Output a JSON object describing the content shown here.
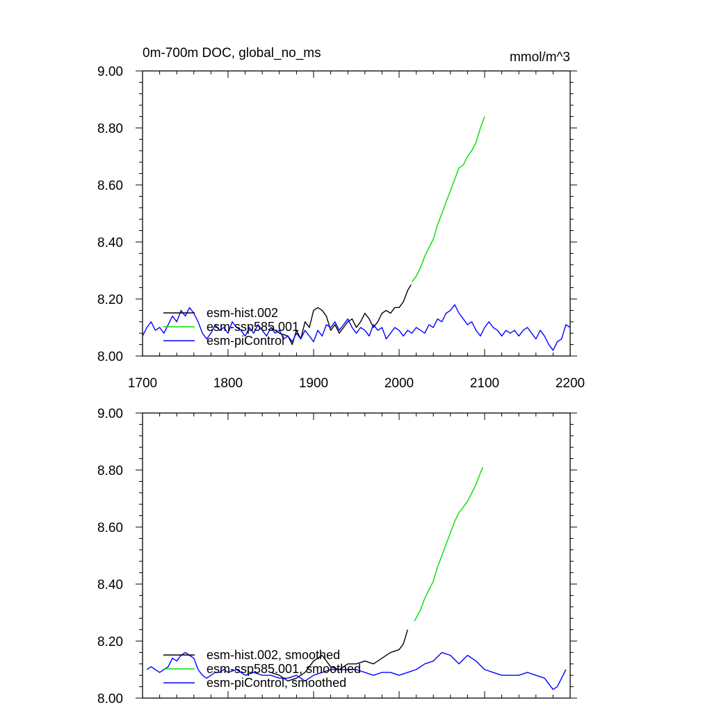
{
  "chart_data": [
    {
      "type": "line",
      "title": "0m-700m DOC, global_no_ms",
      "units": "mmol/m^3",
      "xlim": [
        1700,
        2200
      ],
      "ylim": [
        8.0,
        9.0
      ],
      "x_ticks": [
        "1700",
        "1800",
        "1900",
        "2000",
        "2100",
        "2200"
      ],
      "y_ticks": [
        "8.00",
        "8.20",
        "8.40",
        "8.60",
        "8.80",
        "9.00"
      ],
      "legend_position": "bottom-left",
      "series": [
        {
          "name": "esm-hist.002",
          "color": "#000000",
          "x": [
            1850,
            1860,
            1870,
            1875,
            1880,
            1885,
            1890,
            1895,
            1900,
            1905,
            1910,
            1915,
            1920,
            1925,
            1930,
            1935,
            1940,
            1945,
            1950,
            1955,
            1960,
            1965,
            1970,
            1975,
            1980,
            1985,
            1990,
            1995,
            2000,
            2005,
            2010,
            2014
          ],
          "values": [
            8.1,
            8.08,
            8.07,
            8.04,
            8.09,
            8.06,
            8.12,
            8.1,
            8.16,
            8.17,
            8.16,
            8.14,
            8.09,
            8.11,
            8.08,
            8.1,
            8.12,
            8.13,
            8.1,
            8.12,
            8.15,
            8.13,
            8.1,
            8.12,
            8.15,
            8.16,
            8.15,
            8.17,
            8.17,
            8.19,
            8.23,
            8.25
          ]
        },
        {
          "name": "esm-ssp585.001",
          "color": "#00dd00",
          "x": [
            2015,
            2020,
            2025,
            2030,
            2035,
            2040,
            2045,
            2050,
            2055,
            2060,
            2065,
            2070,
            2075,
            2080,
            2085,
            2090,
            2095,
            2100
          ],
          "values": [
            8.26,
            8.28,
            8.31,
            8.35,
            8.38,
            8.41,
            8.46,
            8.5,
            8.54,
            8.58,
            8.62,
            8.66,
            8.67,
            8.7,
            8.72,
            8.75,
            8.8,
            8.84
          ]
        },
        {
          "name": "esm-piControl",
          "color": "#0000ff",
          "x": [
            1700,
            1705,
            1710,
            1715,
            1720,
            1725,
            1730,
            1735,
            1740,
            1745,
            1750,
            1755,
            1760,
            1765,
            1770,
            1775,
            1780,
            1785,
            1790,
            1795,
            1800,
            1805,
            1810,
            1815,
            1820,
            1825,
            1830,
            1835,
            1840,
            1845,
            1850,
            1855,
            1860,
            1865,
            1870,
            1875,
            1880,
            1885,
            1890,
            1895,
            1900,
            1905,
            1910,
            1915,
            1920,
            1925,
            1930,
            1935,
            1940,
            1945,
            1950,
            1955,
            1960,
            1965,
            1970,
            1975,
            1980,
            1985,
            1990,
            1995,
            2000,
            2005,
            2010,
            2015,
            2020,
            2025,
            2030,
            2035,
            2040,
            2045,
            2050,
            2055,
            2060,
            2065,
            2070,
            2075,
            2080,
            2085,
            2090,
            2095,
            2100,
            2105,
            2110,
            2115,
            2120,
            2125,
            2130,
            2135,
            2140,
            2145,
            2150,
            2155,
            2160,
            2165,
            2170,
            2175,
            2180,
            2185,
            2190,
            2195,
            2200
          ],
          "values": [
            8.07,
            8.1,
            8.12,
            8.09,
            8.1,
            8.08,
            8.11,
            8.14,
            8.12,
            8.16,
            8.14,
            8.17,
            8.15,
            8.12,
            8.08,
            8.06,
            8.08,
            8.11,
            8.09,
            8.1,
            8.08,
            8.12,
            8.1,
            8.09,
            8.07,
            8.1,
            8.08,
            8.11,
            8.09,
            8.07,
            8.1,
            8.08,
            8.09,
            8.06,
            8.07,
            8.05,
            8.08,
            8.06,
            8.09,
            8.07,
            8.05,
            8.09,
            8.07,
            8.11,
            8.1,
            8.12,
            8.09,
            8.11,
            8.13,
            8.1,
            8.08,
            8.1,
            8.09,
            8.07,
            8.11,
            8.09,
            8.1,
            8.06,
            8.08,
            8.1,
            8.09,
            8.07,
            8.09,
            8.08,
            8.1,
            8.09,
            8.08,
            8.11,
            8.1,
            8.13,
            8.12,
            8.15,
            8.16,
            8.18,
            8.15,
            8.13,
            8.11,
            8.12,
            8.09,
            8.07,
            8.1,
            8.12,
            8.1,
            8.09,
            8.07,
            8.09,
            8.08,
            8.09,
            8.07,
            8.09,
            8.1,
            8.08,
            8.06,
            8.09,
            8.07,
            8.04,
            8.02,
            8.05,
            8.06,
            8.11,
            8.1
          ]
        }
      ]
    },
    {
      "type": "line",
      "xlim": [
        1700,
        2200
      ],
      "ylim": [
        8.0,
        9.0
      ],
      "y_ticks": [
        "8.00",
        "8.20",
        "8.40",
        "8.60",
        "8.80",
        "9.00"
      ],
      "legend_position": "bottom-left",
      "series": [
        {
          "name": "esm-hist.002, smoothed",
          "color": "#000000",
          "x": [
            1850,
            1860,
            1870,
            1880,
            1890,
            1900,
            1910,
            1920,
            1930,
            1940,
            1950,
            1960,
            1970,
            1980,
            1990,
            2000,
            2005,
            2010
          ],
          "values": [
            8.09,
            8.08,
            8.06,
            8.07,
            8.09,
            8.13,
            8.15,
            8.11,
            8.1,
            8.12,
            8.12,
            8.13,
            8.12,
            8.14,
            8.16,
            8.17,
            8.19,
            8.24
          ]
        },
        {
          "name": "esm-ssp585.001, smoothed",
          "color": "#00dd00",
          "x": [
            2018,
            2025,
            2030,
            2035,
            2040,
            2045,
            2050,
            2055,
            2060,
            2065,
            2070,
            2075,
            2080,
            2085,
            2090,
            2095,
            2098
          ],
          "values": [
            8.27,
            8.31,
            8.35,
            8.38,
            8.41,
            8.46,
            8.5,
            8.54,
            8.58,
            8.62,
            8.65,
            8.67,
            8.69,
            8.72,
            8.75,
            8.79,
            8.81
          ]
        },
        {
          "name": "esm-piControl, smoothed",
          "color": "#0000ff",
          "x": [
            1705,
            1710,
            1715,
            1720,
            1725,
            1730,
            1735,
            1740,
            1745,
            1750,
            1755,
            1760,
            1765,
            1770,
            1775,
            1780,
            1785,
            1790,
            1795,
            1800,
            1810,
            1820,
            1830,
            1840,
            1850,
            1860,
            1870,
            1880,
            1890,
            1900,
            1910,
            1920,
            1930,
            1940,
            1950,
            1960,
            1970,
            1980,
            1990,
            2000,
            2010,
            2020,
            2030,
            2040,
            2050,
            2060,
            2070,
            2080,
            2090,
            2100,
            2110,
            2120,
            2130,
            2140,
            2150,
            2160,
            2170,
            2180,
            2185,
            2190,
            2195
          ],
          "values": [
            8.1,
            8.11,
            8.1,
            8.09,
            8.1,
            8.11,
            8.14,
            8.13,
            8.15,
            8.16,
            8.15,
            8.14,
            8.1,
            8.08,
            8.07,
            8.08,
            8.09,
            8.09,
            8.1,
            8.09,
            8.1,
            8.08,
            8.09,
            8.08,
            8.08,
            8.07,
            8.07,
            8.08,
            8.06,
            8.08,
            8.09,
            8.1,
            8.1,
            8.1,
            8.1,
            8.09,
            8.08,
            8.09,
            8.09,
            8.08,
            8.09,
            8.1,
            8.12,
            8.13,
            8.16,
            8.15,
            8.12,
            8.15,
            8.13,
            8.1,
            8.09,
            8.08,
            8.08,
            8.08,
            8.09,
            8.08,
            8.07,
            8.03,
            8.04,
            8.07,
            8.1
          ]
        }
      ]
    }
  ]
}
